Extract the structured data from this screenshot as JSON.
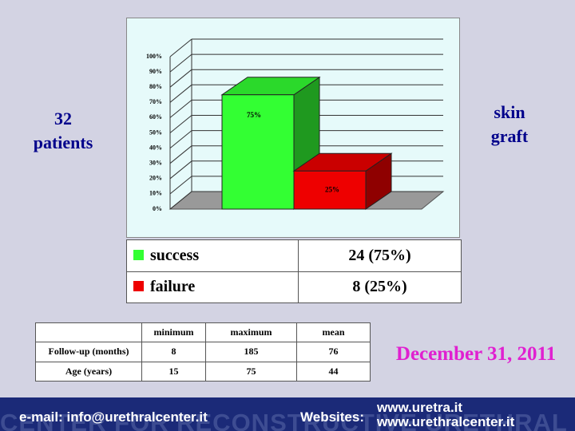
{
  "chart_data": {
    "type": "bar",
    "categories": [
      null,
      null
    ],
    "values": [
      75,
      25
    ],
    "value_labels": [
      "75%",
      "25%"
    ],
    "colors": [
      "#33ff33",
      "#ee0000"
    ],
    "ylim": [
      0,
      100
    ],
    "yticks": [
      {
        "value": 0,
        "label": "0%"
      },
      {
        "value": 10,
        "label": "10%"
      },
      {
        "value": 20,
        "label": "20%"
      },
      {
        "value": 30,
        "label": "30%"
      },
      {
        "value": 40,
        "label": "40%"
      },
      {
        "value": 50,
        "label": "50%"
      },
      {
        "value": 60,
        "label": "60%"
      },
      {
        "value": 70,
        "label": "70%"
      },
      {
        "value": 80,
        "label": "80%"
      },
      {
        "value": 90,
        "label": "90%"
      },
      {
        "value": 100,
        "label": "100%"
      }
    ],
    "grid": true
  },
  "left_label": [
    "32",
    "patients"
  ],
  "right_label": [
    "skin",
    "graft"
  ],
  "legend_table": {
    "rows": [
      {
        "name": "success",
        "color": "#33ff33",
        "value": "24 (75%)"
      },
      {
        "name": "failure",
        "color": "#ee0000",
        "value": "8 (25%)"
      }
    ]
  },
  "stats_table": {
    "header": [
      "minimum",
      "maximum",
      "mean"
    ],
    "rows": [
      {
        "label": "Follow-up (months)",
        "values": [
          8,
          185,
          76
        ]
      },
      {
        "label": "Age (years)",
        "values": [
          15,
          75,
          44
        ]
      }
    ]
  },
  "date": "December 31, 2011",
  "footer": {
    "email": "e-mail: info@urethralcenter.it",
    "websites_label": "Websites:",
    "websites": [
      "www.uretra.it",
      "www.urethralcenter.it"
    ],
    "watermark": "CENTER FOR RECONSTRUCTIVE URETHRAL SURGERY"
  }
}
